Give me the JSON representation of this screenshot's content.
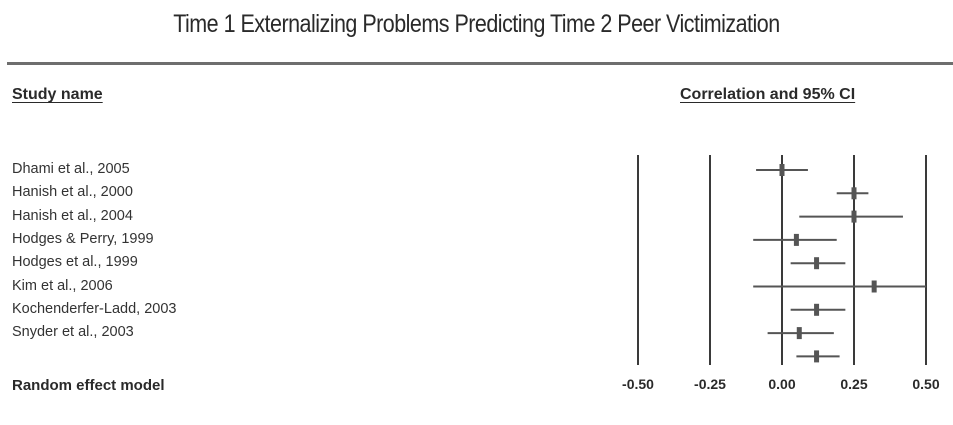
{
  "chart_data": {
    "type": "forest",
    "title": "Time 1 Externalizing Problems Predicting Time 2 Peer Victimization",
    "column_headers": {
      "study": "Study name",
      "effect": "Correlation and 95% CI"
    },
    "xlim": [
      -0.5,
      0.5
    ],
    "x_ticks": [
      -0.5,
      -0.25,
      0.0,
      0.25,
      0.5
    ],
    "x_tick_labels": [
      "-0.50",
      "-0.25",
      "0.00",
      "0.25",
      "0.50"
    ],
    "studies": [
      {
        "name": "Dhami et al., 2005",
        "estimate": 0.0,
        "lower": -0.09,
        "upper": 0.09
      },
      {
        "name": "Hanish et al., 2000",
        "estimate": 0.25,
        "lower": 0.19,
        "upper": 0.3
      },
      {
        "name": "Hanish et al., 2004",
        "estimate": 0.25,
        "lower": 0.06,
        "upper": 0.42
      },
      {
        "name": "Hodges & Perry, 1999",
        "estimate": 0.05,
        "lower": -0.1,
        "upper": 0.19
      },
      {
        "name": "Hodges et al., 1999",
        "estimate": 0.12,
        "lower": 0.03,
        "upper": 0.22
      },
      {
        "name": "Kim et al., 2006",
        "estimate": 0.32,
        "lower": -0.1,
        "upper": 0.5
      },
      {
        "name": "Kochenderfer-Ladd, 2003",
        "estimate": 0.12,
        "lower": 0.03,
        "upper": 0.22
      },
      {
        "name": "Snyder et al., 2003",
        "estimate": 0.06,
        "lower": -0.05,
        "upper": 0.18
      }
    ],
    "random_effect": {
      "label": "Random effect model",
      "estimate": 0.12,
      "lower": 0.05,
      "upper": 0.2
    }
  }
}
